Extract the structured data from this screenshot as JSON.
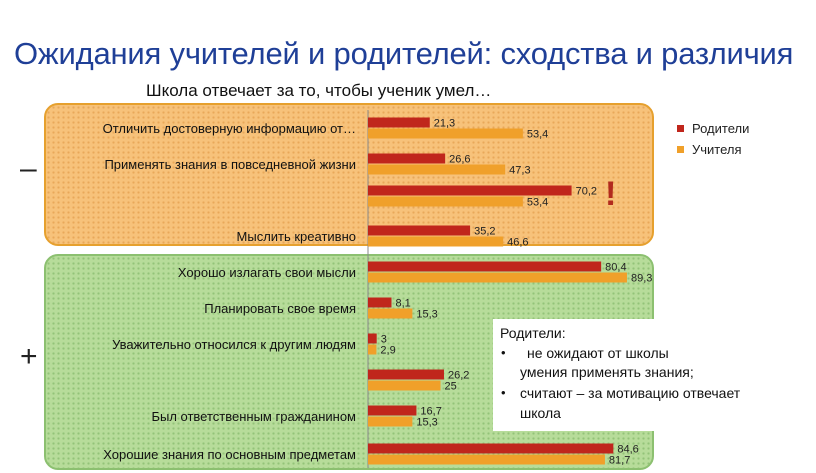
{
  "title": "Ожидания учителей и родителей: сходства и различия",
  "chart_data": {
    "type": "bar",
    "title": "Школа отвечает за то, чтобы ученик умел…",
    "orientation": "horizontal",
    "categories": [
      "Отличить достоверную информацию от…",
      "Применять знания в повседневной жизни",
      "",
      "Мыслить креативно",
      "Хорошо излагать свои мысли",
      "Планировать свое время",
      "Уважительно относился к другим людям",
      "",
      "Был ответственным гражданином",
      "Хорошие знания по основным предметам"
    ],
    "series": [
      {
        "name": "Родители",
        "color": "#c0261c",
        "values": [
          21.3,
          26.6,
          70.2,
          35.2,
          80.4,
          8.1,
          3,
          26.2,
          16.7,
          84.6
        ],
        "labels": [
          "21,3",
          "26,6",
          "70,2",
          "35,2",
          "80,4",
          "8,1",
          "3",
          "26,2",
          "16,7",
          "84,6"
        ]
      },
      {
        "name": "Учителя",
        "color": "#f0a02a",
        "values": [
          53.4,
          47.3,
          53.4,
          46.6,
          89.3,
          15.3,
          2.9,
          25,
          15.3,
          81.7
        ],
        "labels": [
          "53,4",
          "47,3",
          "53,4",
          "46,6",
          "89,3",
          "15,3",
          "2,9",
          "25",
          "15,3",
          "81,7"
        ]
      }
    ],
    "legend_position": "right",
    "groups": [
      {
        "sign": "–",
        "categories": 4
      },
      {
        "sign": "+",
        "categories": 6
      }
    ],
    "annotation": "!"
  },
  "note": {
    "heading": "Родители:",
    "bullets": [
      [
        "не ожидают от школы",
        "умения применять знания;"
      ],
      [
        "считают – за мотивацию отвечает",
        "школа"
      ]
    ],
    "bullet_glyph": "•"
  }
}
